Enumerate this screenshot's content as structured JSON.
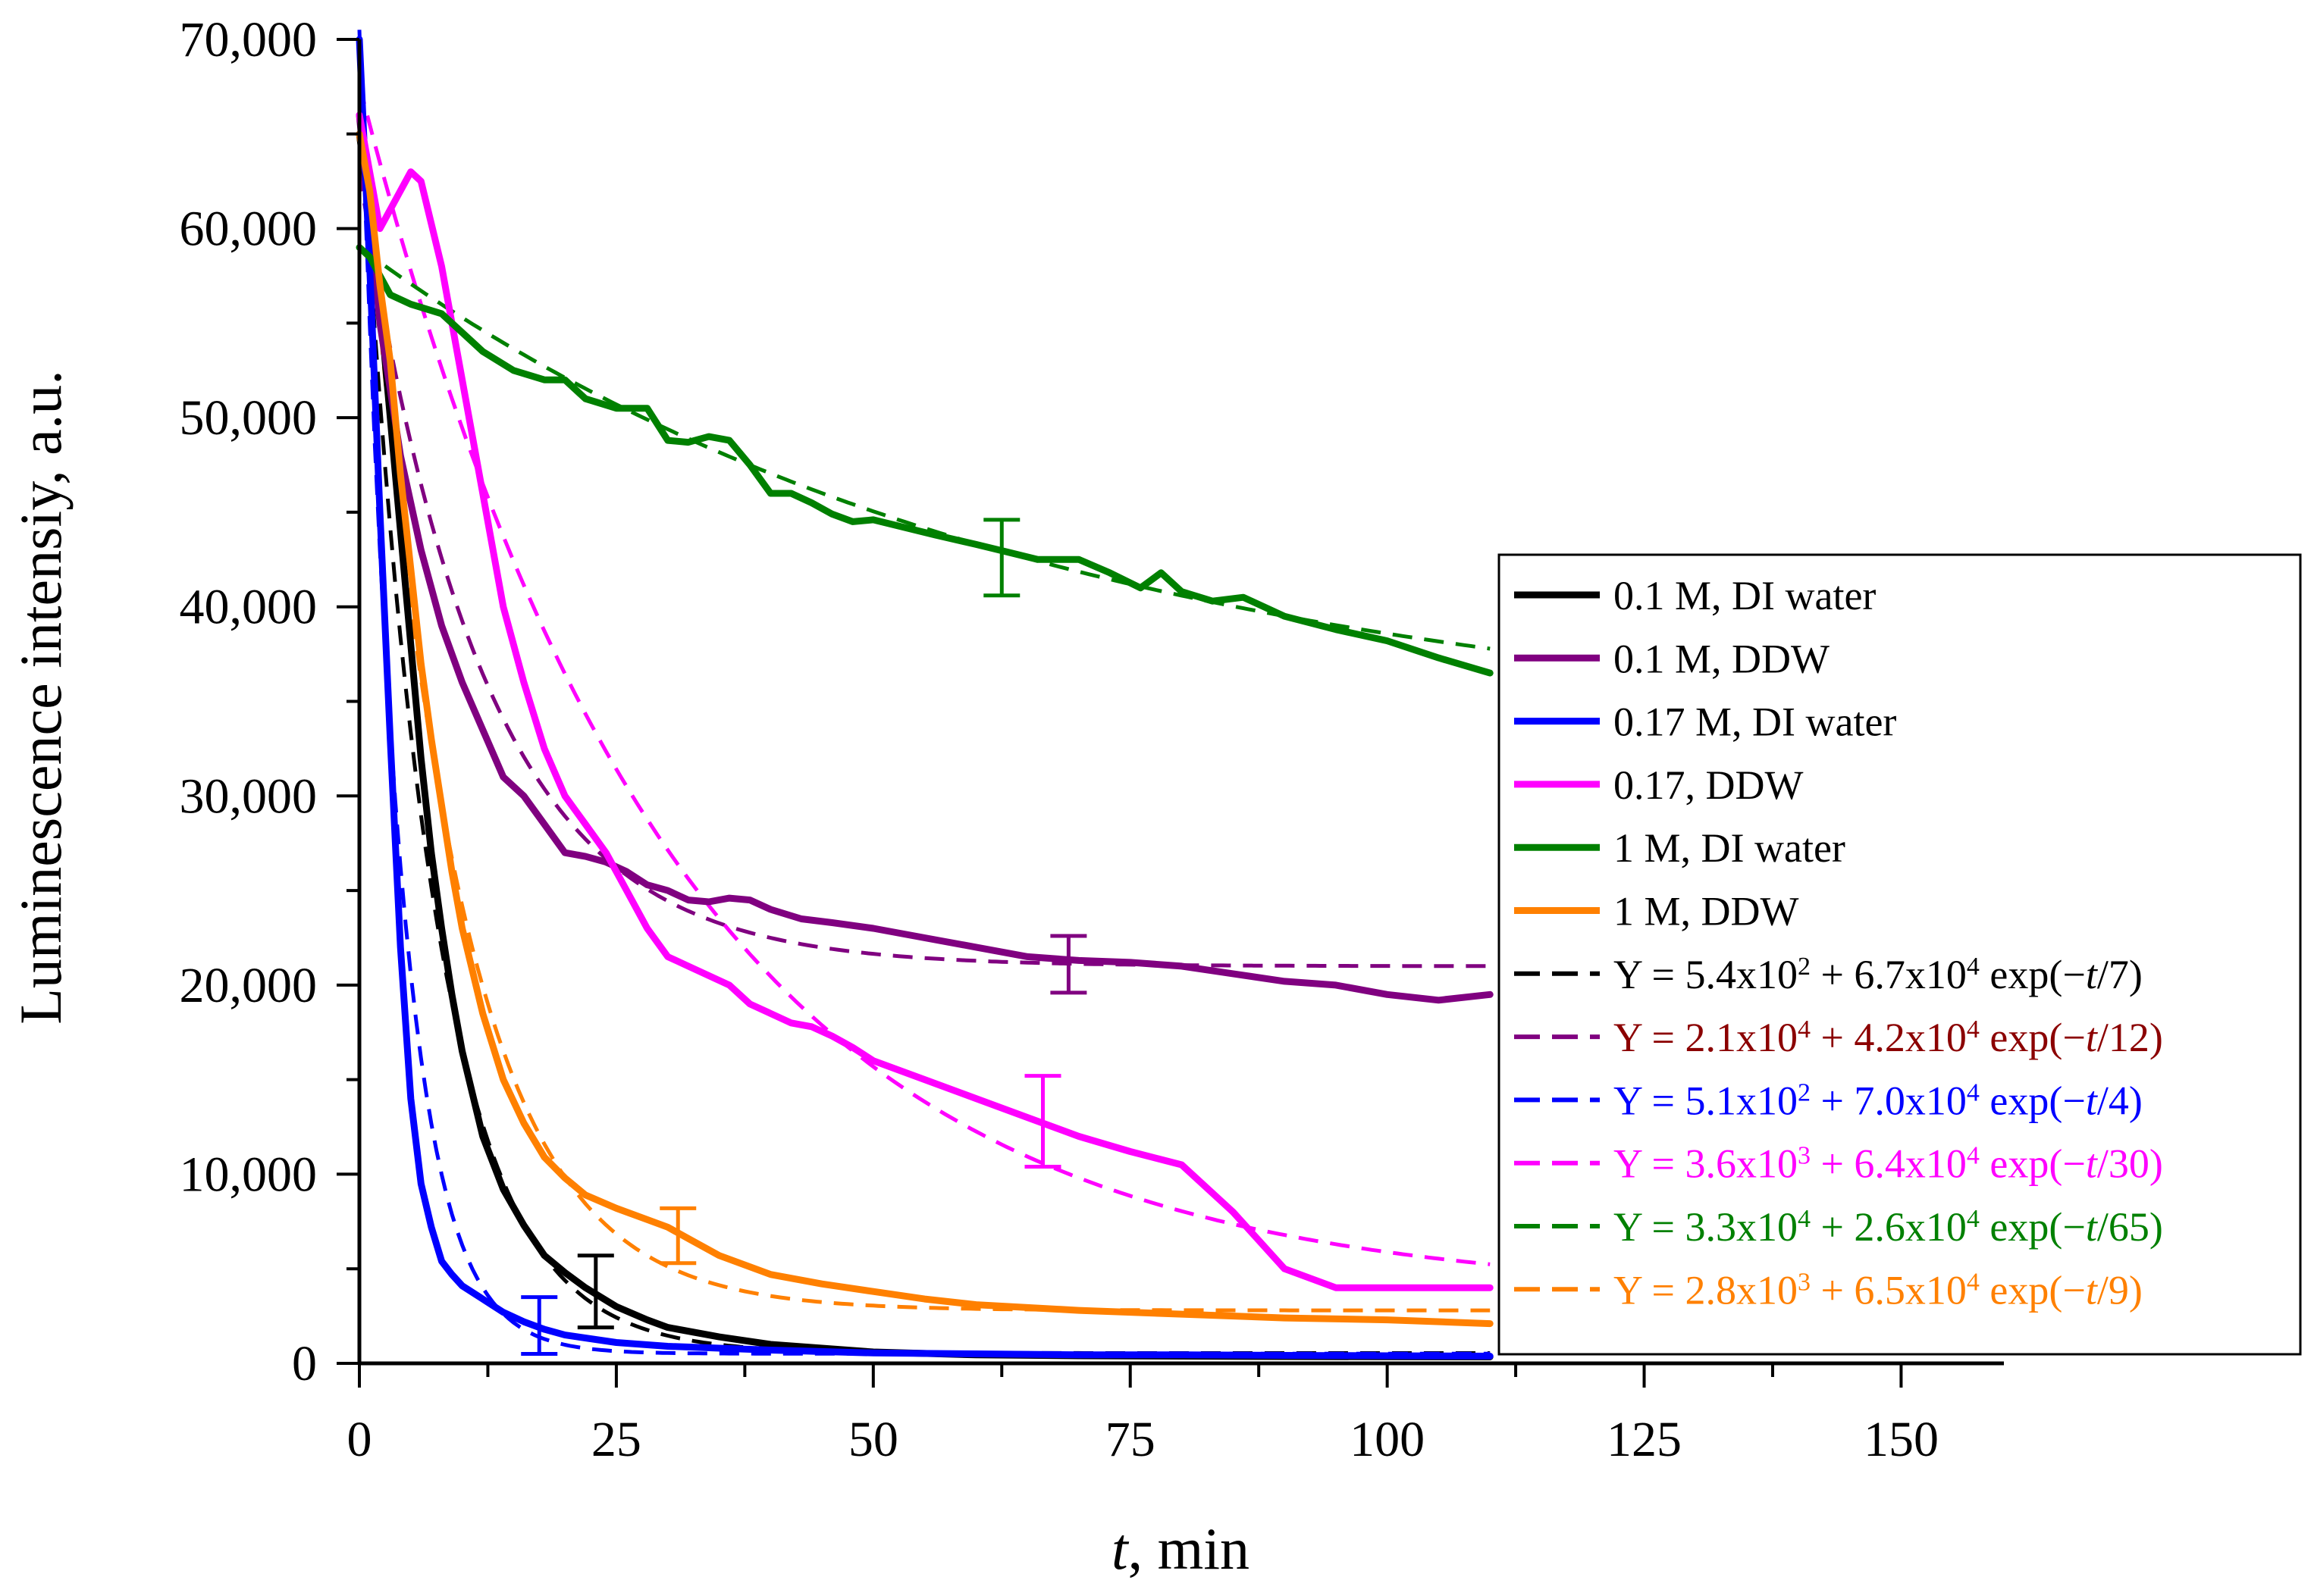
{
  "chart_data": {
    "type": "line",
    "title": "",
    "xlabel_italic": "t",
    "xlabel_rest": ", min",
    "ylabel": "Luminescence intensiy, a.u.",
    "xlim": [
      0,
      160
    ],
    "ylim": [
      0,
      70000
    ],
    "xticks": [
      0,
      25,
      50,
      75,
      100,
      125,
      150
    ],
    "xtick_labels": [
      "0",
      "25",
      "50",
      "75",
      "100",
      "125",
      "150"
    ],
    "yticks": [
      0,
      10000,
      20000,
      30000,
      40000,
      50000,
      60000,
      70000
    ],
    "ytick_labels": [
      "0",
      "10,000",
      "20,000",
      "30,000",
      "40,000",
      "50,000",
      "60,000",
      "70,000"
    ],
    "legend_position": "right",
    "series": [
      {
        "name": "0.1 M, DI water",
        "color": "#000000",
        "x": [
          0,
          1,
          2,
          3,
          4,
          5,
          6,
          7,
          8,
          9,
          10,
          12,
          14,
          16,
          18,
          20,
          22,
          25,
          28,
          30,
          35,
          40,
          45,
          50,
          60,
          70,
          80,
          90,
          100,
          110
        ],
        "y": [
          65000,
          61000,
          56000,
          50000,
          44000,
          38000,
          32000,
          27000,
          23000,
          19500,
          16500,
          12000,
          9200,
          7300,
          5700,
          4800,
          4000,
          3000,
          2300,
          1900,
          1400,
          1000,
          800,
          600,
          450,
          400,
          380,
          360,
          350,
          340
        ],
        "error_bar": {
          "x": 23,
          "y": 3800,
          "low": 1900,
          "high": 5700
        }
      },
      {
        "name": "0.1 M, DDW",
        "color": "#800080",
        "x": [
          0,
          2,
          4,
          6,
          8,
          10,
          12,
          14,
          16,
          18,
          20,
          22,
          24,
          26,
          28,
          30,
          32,
          34,
          36,
          38,
          40,
          43,
          46,
          50,
          55,
          60,
          65,
          70,
          75,
          80,
          85,
          90,
          95,
          100,
          105,
          110
        ],
        "y": [
          66000,
          55000,
          48000,
          43000,
          39000,
          36000,
          33500,
          31000,
          30000,
          28500,
          27000,
          26800,
          26500,
          26000,
          25300,
          25000,
          24500,
          24400,
          24600,
          24500,
          24000,
          23500,
          23300,
          23000,
          22500,
          22000,
          21500,
          21300,
          21200,
          21000,
          20600,
          20200,
          20000,
          19500,
          19200,
          19500
        ],
        "error_bar": {
          "x": 69,
          "y": 21100,
          "low": 19600,
          "high": 22600
        }
      },
      {
        "name": "0.17 M, DI water",
        "color": "#0000ff",
        "x": [
          0,
          1,
          2,
          3,
          4,
          5,
          6,
          7,
          8,
          9,
          10,
          12,
          14,
          16,
          18,
          20,
          25,
          30,
          40,
          50,
          60,
          70,
          80,
          90,
          100,
          110
        ],
        "y": [
          70000,
          58000,
          45000,
          33000,
          22000,
          14000,
          9500,
          7200,
          5400,
          4700,
          4100,
          3400,
          2700,
          2200,
          1800,
          1500,
          1100,
          900,
          700,
          550,
          500,
          450,
          450,
          420,
          400,
          380
        ],
        "error_bar": {
          "x": 17.5,
          "y": 1800,
          "low": 500,
          "high": 3500
        }
      },
      {
        "name": "0.17, DDW",
        "color": "#ff00ff",
        "x": [
          0,
          2,
          4,
          5,
          6,
          8,
          10,
          12,
          14,
          16,
          18,
          20,
          22,
          24,
          26,
          28,
          30,
          32,
          34,
          36,
          38,
          40,
          42,
          44,
          46,
          48,
          50,
          55,
          60,
          65,
          70,
          75,
          80,
          85,
          90,
          95,
          100,
          105,
          110
        ],
        "y": [
          66000,
          60000,
          62000,
          63000,
          62500,
          58000,
          52000,
          46000,
          40000,
          36000,
          32500,
          30000,
          28500,
          27000,
          25000,
          23000,
          21500,
          21000,
          20500,
          20000,
          19000,
          18500,
          18000,
          17800,
          17300,
          16700,
          16000,
          15000,
          14000,
          13000,
          12000,
          11200,
          10500,
          8000,
          5000,
          4000,
          4000,
          4000,
          4000
        ],
        "error_bar": {
          "x": 66.5,
          "y": 12800,
          "low": 10400,
          "high": 15200
        }
      },
      {
        "name": "1 M, DI water",
        "color": "#008000",
        "x": [
          0,
          1,
          3,
          5,
          8,
          10,
          12,
          15,
          18,
          20,
          22,
          25,
          28,
          30,
          32,
          34,
          36,
          38,
          40,
          42,
          44,
          46,
          48,
          50,
          53,
          56,
          60,
          63,
          66,
          70,
          73,
          76,
          78,
          80,
          83,
          86,
          90,
          95,
          100,
          105,
          110
        ],
        "y": [
          59000,
          58500,
          56500,
          56000,
          55500,
          54500,
          53500,
          52500,
          52000,
          52000,
          51000,
          50500,
          50500,
          48800,
          48700,
          49000,
          48800,
          47500,
          46000,
          46000,
          45500,
          44900,
          44500,
          44600,
          44200,
          43800,
          43300,
          42900,
          42500,
          42500,
          41800,
          41000,
          41800,
          40800,
          40300,
          40500,
          39500,
          38800,
          38200,
          37300,
          36500
        ],
        "error_bar": {
          "x": 62.5,
          "y": 42600,
          "low": 40600,
          "high": 44600
        }
      },
      {
        "name": "1 M, DDW",
        "color": "#ff8000",
        "x": [
          0,
          1,
          2,
          3,
          4,
          5,
          6,
          7,
          8,
          9,
          10,
          12,
          14,
          16,
          18,
          20,
          22,
          25,
          28,
          30,
          32,
          35,
          40,
          45,
          50,
          55,
          60,
          70,
          80,
          90,
          100,
          110
        ],
        "y": [
          65000,
          62000,
          57000,
          53000,
          47000,
          42000,
          37000,
          33000,
          29500,
          26000,
          23000,
          18500,
          15000,
          12700,
          10900,
          9800,
          8900,
          8200,
          7600,
          7200,
          6600,
          5700,
          4700,
          4200,
          3800,
          3400,
          3100,
          2800,
          2600,
          2400,
          2300,
          2100
        ],
        "error_bar": {
          "x": 31,
          "y": 6700,
          "low": 5300,
          "high": 8200
        }
      }
    ],
    "fits": [
      {
        "name": "Y = 5.4x10^2 + 6.7x10^4 exp(−t/7)",
        "color": "#000000",
        "text_color": "#000000",
        "a": 540,
        "b": 67000,
        "tau": 7,
        "parts": [
          [
            "Y = 5.4x10",
            "n"
          ],
          [
            "2",
            "s"
          ],
          [
            " + 6.7x10",
            "n"
          ],
          [
            "4",
            "s"
          ],
          [
            " exp(−",
            "n"
          ],
          [
            "t",
            "i"
          ],
          [
            "/7)",
            "n"
          ]
        ]
      },
      {
        "name": "Y = 2.1x10^4 + 4.2x10^4 exp(−t/12)",
        "color": "#800080",
        "text_color": "#8b0000",
        "a": 21000,
        "b": 42000,
        "tau": 12,
        "parts": [
          [
            "Y = 2.1x10",
            "n"
          ],
          [
            "4",
            "s"
          ],
          [
            " + 4.2x10",
            "n"
          ],
          [
            "4",
            "s"
          ],
          [
            " exp(−",
            "n"
          ],
          [
            "t",
            "i"
          ],
          [
            "/12)",
            "n"
          ]
        ]
      },
      {
        "name": "Y = 5.1x10^2 + 7.0x10^4 exp(−t/4)",
        "color": "#0000ff",
        "text_color": "#0000ff",
        "a": 510,
        "b": 70000,
        "tau": 4,
        "parts": [
          [
            "Y = 5.1x10",
            "n"
          ],
          [
            "2",
            "s"
          ],
          [
            " + 7.0x10",
            "n"
          ],
          [
            "4",
            "s"
          ],
          [
            " exp(−",
            "n"
          ],
          [
            "t",
            "i"
          ],
          [
            "/4)",
            "n"
          ]
        ]
      },
      {
        "name": "Y = 3.6x10^3 + 6.4x10^4 exp(−t/30)",
        "color": "#ff00ff",
        "text_color": "#ff00ff",
        "a": 3600,
        "b": 64000,
        "tau": 30,
        "parts": [
          [
            "Y = 3.6x10",
            "n"
          ],
          [
            "3",
            "s"
          ],
          [
            " + 6.4x10",
            "n"
          ],
          [
            "4",
            "s"
          ],
          [
            " exp(−",
            "n"
          ],
          [
            "t",
            "i"
          ],
          [
            "/30)",
            "n"
          ]
        ]
      },
      {
        "name": "Y = 3.3x10^4 + 2.6x10^4 exp(−t/65)",
        "color": "#008000",
        "text_color": "#008000",
        "a": 33000,
        "b": 26000,
        "tau": 65,
        "parts": [
          [
            "Y = 3.3x10",
            "n"
          ],
          [
            "4",
            "s"
          ],
          [
            " + 2.6x10",
            "n"
          ],
          [
            "4",
            "s"
          ],
          [
            " exp(−",
            "n"
          ],
          [
            "t",
            "i"
          ],
          [
            "/65)",
            "n"
          ]
        ]
      },
      {
        "name": "Y = 2.8x10^3 + 6.5x10^4 exp(−t/9)",
        "color": "#ff8000",
        "text_color": "#ff8000",
        "a": 2800,
        "b": 65000,
        "tau": 9,
        "parts": [
          [
            "Y = 2.8x10",
            "n"
          ],
          [
            "3",
            "s"
          ],
          [
            " + 6.5x10",
            "n"
          ],
          [
            "4",
            "s"
          ],
          [
            " exp(−",
            "n"
          ],
          [
            "t",
            "i"
          ],
          [
            "/9)",
            "n"
          ]
        ]
      }
    ]
  }
}
